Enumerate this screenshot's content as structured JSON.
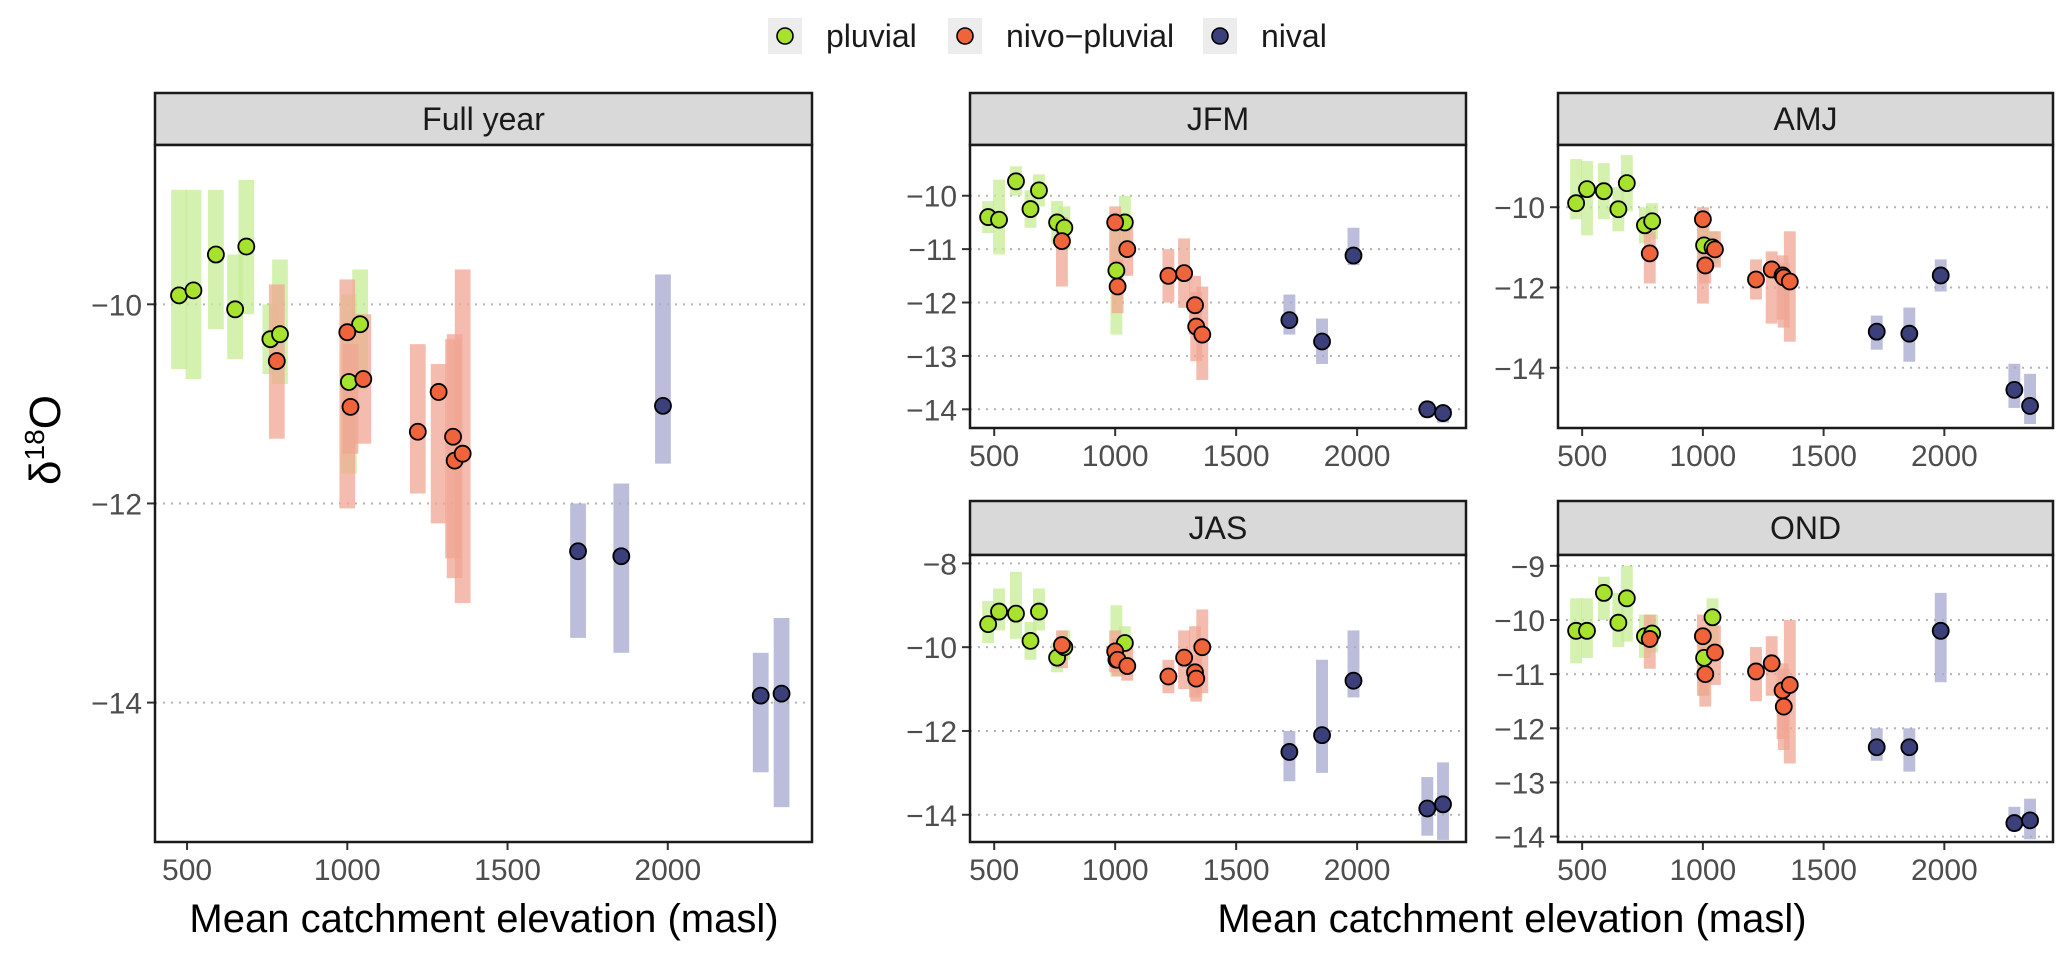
{
  "legend": {
    "items": [
      {
        "label": "pluvial",
        "color": "#a6e22e"
      },
      {
        "label": "nivo−pluvial",
        "color": "#f0643c"
      },
      {
        "label": "nival",
        "color": "#3b3f7a"
      }
    ],
    "bar_colors": {
      "pluvial": "#c6ec96",
      "nivo-pluvial": "#f0a693",
      "nival": "#a5a7cd"
    }
  },
  "axes": {
    "ylabel_prefix": "δ",
    "ylabel_sup": "18",
    "ylabel_suffix": "O",
    "xlabel_left": "Mean catchment elevation (masl)",
    "xlabel_right": "Mean catchment elevation (masl)"
  },
  "chart_data": [
    {
      "type": "scatter",
      "title": "Full year",
      "xlim": [
        400,
        2450
      ],
      "ylim": [
        -15.4,
        -8.4
      ],
      "xticks": [
        500,
        1000,
        1500,
        2000
      ],
      "yticks": [
        -10,
        -12,
        -14
      ],
      "grid": "dotted-horizontal",
      "points": [
        {
          "x": 475,
          "y": -9.91,
          "lo": -10.65,
          "hi": -8.85,
          "cls": "pluvial"
        },
        {
          "x": 520,
          "y": -9.86,
          "lo": -10.75,
          "hi": -8.85,
          "cls": "pluvial"
        },
        {
          "x": 590,
          "y": -9.5,
          "lo": -10.25,
          "hi": -8.85,
          "cls": "pluvial"
        },
        {
          "x": 650,
          "y": -10.05,
          "lo": -10.55,
          "hi": -9.5,
          "cls": "pluvial"
        },
        {
          "x": 685,
          "y": -9.42,
          "lo": -10.1,
          "hi": -8.75,
          "cls": "pluvial"
        },
        {
          "x": 760,
          "y": -10.35,
          "lo": -10.7,
          "hi": -10.0,
          "cls": "pluvial"
        },
        {
          "x": 790,
          "y": -10.3,
          "lo": -10.8,
          "hi": -9.55,
          "cls": "pluvial"
        },
        {
          "x": 1005,
          "y": -10.78,
          "lo": -11.7,
          "hi": -9.9,
          "cls": "pluvial"
        },
        {
          "x": 1040,
          "y": -10.2,
          "lo": -10.85,
          "hi": -9.65,
          "cls": "pluvial"
        },
        {
          "x": 780,
          "y": -10.57,
          "lo": -11.35,
          "hi": -9.8,
          "cls": "nivo-pluvial"
        },
        {
          "x": 1000,
          "y": -10.28,
          "lo": -12.05,
          "hi": -9.75,
          "cls": "nivo-pluvial"
        },
        {
          "x": 1010,
          "y": -11.03,
          "lo": -11.5,
          "hi": -10.4,
          "cls": "nivo-pluvial"
        },
        {
          "x": 1050,
          "y": -10.75,
          "lo": -11.4,
          "hi": -10.1,
          "cls": "nivo-pluvial"
        },
        {
          "x": 1220,
          "y": -11.28,
          "lo": -11.9,
          "hi": -10.4,
          "cls": "nivo-pluvial"
        },
        {
          "x": 1285,
          "y": -10.88,
          "lo": -12.2,
          "hi": -10.6,
          "cls": "nivo-pluvial"
        },
        {
          "x": 1330,
          "y": -11.33,
          "lo": -12.55,
          "hi": -10.35,
          "cls": "nivo-pluvial"
        },
        {
          "x": 1335,
          "y": -11.57,
          "lo": -12.75,
          "hi": -10.3,
          "cls": "nivo-pluvial"
        },
        {
          "x": 1360,
          "y": -11.5,
          "lo": -13.0,
          "hi": -9.65,
          "cls": "nivo-pluvial"
        },
        {
          "x": 1720,
          "y": -12.48,
          "lo": -13.35,
          "hi": -12.0,
          "cls": "nival"
        },
        {
          "x": 1855,
          "y": -12.53,
          "lo": -13.5,
          "hi": -11.8,
          "cls": "nival"
        },
        {
          "x": 1985,
          "y": -11.02,
          "lo": -11.6,
          "hi": -9.7,
          "cls": "nival"
        },
        {
          "x": 2290,
          "y": -13.93,
          "lo": -14.7,
          "hi": -13.5,
          "cls": "nival"
        },
        {
          "x": 2355,
          "y": -13.91,
          "lo": -15.05,
          "hi": -13.15,
          "cls": "nival"
        }
      ]
    },
    {
      "type": "scatter",
      "title": "JFM",
      "xlim": [
        400,
        2450
      ],
      "ylim": [
        -14.35,
        -9.05
      ],
      "xticks": [
        500,
        1000,
        1500,
        2000
      ],
      "yticks": [
        -10,
        -11,
        -12,
        -13,
        -14
      ],
      "grid": "dotted-horizontal",
      "points": [
        {
          "x": 475,
          "y": -10.4,
          "lo": -10.7,
          "hi": -10.1,
          "cls": "pluvial"
        },
        {
          "x": 520,
          "y": -10.45,
          "lo": -11.1,
          "hi": -9.7,
          "cls": "pluvial"
        },
        {
          "x": 590,
          "y": -9.73,
          "lo": -10.0,
          "hi": -9.45,
          "cls": "pluvial"
        },
        {
          "x": 650,
          "y": -10.25,
          "lo": -10.6,
          "hi": -9.9,
          "cls": "pluvial"
        },
        {
          "x": 685,
          "y": -9.9,
          "lo": -10.2,
          "hi": -9.6,
          "cls": "pluvial"
        },
        {
          "x": 760,
          "y": -10.5,
          "lo": -10.9,
          "hi": -10.1,
          "cls": "pluvial"
        },
        {
          "x": 790,
          "y": -10.6,
          "lo": -11.0,
          "hi": -10.2,
          "cls": "pluvial"
        },
        {
          "x": 1005,
          "y": -11.4,
          "lo": -12.6,
          "hi": -10.3,
          "cls": "pluvial"
        },
        {
          "x": 1040,
          "y": -10.5,
          "lo": -11.1,
          "hi": -10.0,
          "cls": "pluvial"
        },
        {
          "x": 780,
          "y": -10.85,
          "lo": -11.7,
          "hi": -10.4,
          "cls": "nivo-pluvial"
        },
        {
          "x": 1000,
          "y": -10.5,
          "lo": -11.3,
          "hi": -10.2,
          "cls": "nivo-pluvial"
        },
        {
          "x": 1010,
          "y": -11.7,
          "lo": -12.2,
          "hi": -11.2,
          "cls": "nivo-pluvial"
        },
        {
          "x": 1050,
          "y": -11.0,
          "lo": -11.5,
          "hi": -10.5,
          "cls": "nivo-pluvial"
        },
        {
          "x": 1220,
          "y": -11.5,
          "lo": -12.0,
          "hi": -11.0,
          "cls": "nivo-pluvial"
        },
        {
          "x": 1285,
          "y": -11.45,
          "lo": -12.1,
          "hi": -10.8,
          "cls": "nivo-pluvial"
        },
        {
          "x": 1330,
          "y": -12.05,
          "lo": -12.6,
          "hi": -11.5,
          "cls": "nivo-pluvial"
        },
        {
          "x": 1335,
          "y": -12.45,
          "lo": -13.1,
          "hi": -11.8,
          "cls": "nivo-pluvial"
        },
        {
          "x": 1360,
          "y": -12.6,
          "lo": -13.45,
          "hi": -11.7,
          "cls": "nivo-pluvial"
        },
        {
          "x": 1720,
          "y": -12.33,
          "lo": -12.6,
          "hi": -11.85,
          "cls": "nival"
        },
        {
          "x": 1855,
          "y": -12.73,
          "lo": -13.15,
          "hi": -12.3,
          "cls": "nival"
        },
        {
          "x": 1985,
          "y": -11.12,
          "lo": -11.3,
          "hi": -10.6,
          "cls": "nival"
        },
        {
          "x": 2290,
          "y": -14.0,
          "lo": -14.15,
          "hi": -13.85,
          "cls": "nival"
        },
        {
          "x": 2355,
          "y": -14.07,
          "lo": -14.25,
          "hi": -13.95,
          "cls": "nival"
        }
      ]
    },
    {
      "type": "scatter",
      "title": "AMJ",
      "xlim": [
        400,
        2450
      ],
      "ylim": [
        -15.5,
        -8.45
      ],
      "xticks": [
        500,
        1000,
        1500,
        2000
      ],
      "yticks": [
        -10,
        -12,
        -14
      ],
      "grid": "dotted-horizontal",
      "points": [
        {
          "x": 475,
          "y": -9.9,
          "lo": -10.3,
          "hi": -8.8,
          "cls": "pluvial"
        },
        {
          "x": 520,
          "y": -9.55,
          "lo": -10.7,
          "hi": -8.85,
          "cls": "pluvial"
        },
        {
          "x": 590,
          "y": -9.6,
          "lo": -10.3,
          "hi": -8.9,
          "cls": "pluvial"
        },
        {
          "x": 650,
          "y": -10.05,
          "lo": -10.6,
          "hi": -9.5,
          "cls": "pluvial"
        },
        {
          "x": 685,
          "y": -9.4,
          "lo": -10.1,
          "hi": -8.7,
          "cls": "pluvial"
        },
        {
          "x": 760,
          "y": -10.45,
          "lo": -10.9,
          "hi": -10.0,
          "cls": "pluvial"
        },
        {
          "x": 790,
          "y": -10.35,
          "lo": -10.8,
          "hi": -9.9,
          "cls": "pluvial"
        },
        {
          "x": 1005,
          "y": -10.95,
          "lo": -11.5,
          "hi": -10.4,
          "cls": "pluvial"
        },
        {
          "x": 1040,
          "y": -11.0,
          "lo": -11.4,
          "hi": -10.6,
          "cls": "pluvial"
        },
        {
          "x": 780,
          "y": -11.15,
          "lo": -11.9,
          "hi": -10.6,
          "cls": "nivo-pluvial"
        },
        {
          "x": 1000,
          "y": -10.3,
          "lo": -12.4,
          "hi": -10.0,
          "cls": "nivo-pluvial"
        },
        {
          "x": 1010,
          "y": -11.45,
          "lo": -11.9,
          "hi": -11.0,
          "cls": "nivo-pluvial"
        },
        {
          "x": 1050,
          "y": -11.05,
          "lo": -11.5,
          "hi": -10.6,
          "cls": "nivo-pluvial"
        },
        {
          "x": 1220,
          "y": -11.8,
          "lo": -12.3,
          "hi": -11.3,
          "cls": "nivo-pluvial"
        },
        {
          "x": 1285,
          "y": -11.55,
          "lo": -12.9,
          "hi": -11.1,
          "cls": "nivo-pluvial"
        },
        {
          "x": 1330,
          "y": -11.7,
          "lo": -12.8,
          "hi": -11.2,
          "cls": "nivo-pluvial"
        },
        {
          "x": 1335,
          "y": -11.75,
          "lo": -13.0,
          "hi": -11.4,
          "cls": "nivo-pluvial"
        },
        {
          "x": 1360,
          "y": -11.85,
          "lo": -13.35,
          "hi": -10.6,
          "cls": "nivo-pluvial"
        },
        {
          "x": 1720,
          "y": -13.1,
          "lo": -13.55,
          "hi": -12.7,
          "cls": "nival"
        },
        {
          "x": 1855,
          "y": -13.15,
          "lo": -13.85,
          "hi": -12.5,
          "cls": "nival"
        },
        {
          "x": 1985,
          "y": -11.7,
          "lo": -12.1,
          "hi": -11.3,
          "cls": "nival"
        },
        {
          "x": 2290,
          "y": -14.55,
          "lo": -15.0,
          "hi": -13.9,
          "cls": "nival"
        },
        {
          "x": 2355,
          "y": -14.95,
          "lo": -15.4,
          "hi": -14.15,
          "cls": "nival"
        }
      ]
    },
    {
      "type": "scatter",
      "title": "JAS",
      "xlim": [
        400,
        2450
      ],
      "ylim": [
        -14.65,
        -7.8
      ],
      "xticks": [
        500,
        1000,
        1500,
        2000
      ],
      "yticks": [
        -8,
        -10,
        -12,
        -14
      ],
      "grid": "dotted-horizontal",
      "points": [
        {
          "x": 475,
          "y": -9.45,
          "lo": -9.9,
          "hi": -8.9,
          "cls": "pluvial"
        },
        {
          "x": 520,
          "y": -9.15,
          "lo": -9.6,
          "hi": -8.6,
          "cls": "pluvial"
        },
        {
          "x": 590,
          "y": -9.2,
          "lo": -9.8,
          "hi": -8.2,
          "cls": "pluvial"
        },
        {
          "x": 650,
          "y": -9.85,
          "lo": -10.3,
          "hi": -9.4,
          "cls": "pluvial"
        },
        {
          "x": 685,
          "y": -9.15,
          "lo": -9.6,
          "hi": -8.6,
          "cls": "pluvial"
        },
        {
          "x": 760,
          "y": -10.25,
          "lo": -10.6,
          "hi": -9.9,
          "cls": "pluvial"
        },
        {
          "x": 790,
          "y": -10.0,
          "lo": -10.3,
          "hi": -9.6,
          "cls": "pluvial"
        },
        {
          "x": 1005,
          "y": -10.3,
          "lo": -10.7,
          "hi": -9.0,
          "cls": "pluvial"
        },
        {
          "x": 1040,
          "y": -9.9,
          "lo": -10.3,
          "hi": -9.5,
          "cls": "pluvial"
        },
        {
          "x": 780,
          "y": -9.95,
          "lo": -10.5,
          "hi": -9.6,
          "cls": "nivo-pluvial"
        },
        {
          "x": 1000,
          "y": -10.1,
          "lo": -10.6,
          "hi": -9.6,
          "cls": "nivo-pluvial"
        },
        {
          "x": 1010,
          "y": -10.3,
          "lo": -10.7,
          "hi": -9.8,
          "cls": "nivo-pluvial"
        },
        {
          "x": 1050,
          "y": -10.45,
          "lo": -10.8,
          "hi": -9.8,
          "cls": "nivo-pluvial"
        },
        {
          "x": 1220,
          "y": -10.7,
          "lo": -11.1,
          "hi": -10.3,
          "cls": "nivo-pluvial"
        },
        {
          "x": 1285,
          "y": -10.25,
          "lo": -11.0,
          "hi": -9.6,
          "cls": "nivo-pluvial"
        },
        {
          "x": 1330,
          "y": -10.6,
          "lo": -11.2,
          "hi": -9.5,
          "cls": "nivo-pluvial"
        },
        {
          "x": 1335,
          "y": -10.75,
          "lo": -11.3,
          "hi": -10.2,
          "cls": "nivo-pluvial"
        },
        {
          "x": 1360,
          "y": -10.0,
          "lo": -11.1,
          "hi": -9.1,
          "cls": "nivo-pluvial"
        },
        {
          "x": 1720,
          "y": -12.5,
          "lo": -13.2,
          "hi": -12.0,
          "cls": "nival"
        },
        {
          "x": 1855,
          "y": -12.1,
          "lo": -13.0,
          "hi": -10.3,
          "cls": "nival"
        },
        {
          "x": 1985,
          "y": -10.8,
          "lo": -11.2,
          "hi": -9.6,
          "cls": "nival"
        },
        {
          "x": 2290,
          "y": -13.85,
          "lo": -14.5,
          "hi": -13.1,
          "cls": "nival"
        },
        {
          "x": 2355,
          "y": -13.75,
          "lo": -14.6,
          "hi": -12.75,
          "cls": "nival"
        }
      ]
    },
    {
      "type": "scatter",
      "title": "OND",
      "xlim": [
        400,
        2450
      ],
      "ylim": [
        -14.1,
        -8.8
      ],
      "xticks": [
        500,
        1000,
        1500,
        2000
      ],
      "yticks": [
        -9,
        -10,
        -11,
        -12,
        -13,
        -14
      ],
      "grid": "dotted-horizontal",
      "points": [
        {
          "x": 475,
          "y": -10.2,
          "lo": -10.8,
          "hi": -9.6,
          "cls": "pluvial"
        },
        {
          "x": 520,
          "y": -10.2,
          "lo": -10.7,
          "hi": -9.6,
          "cls": "pluvial"
        },
        {
          "x": 590,
          "y": -9.5,
          "lo": -10.0,
          "hi": -9.2,
          "cls": "pluvial"
        },
        {
          "x": 650,
          "y": -10.05,
          "lo": -10.5,
          "hi": -9.5,
          "cls": "pluvial"
        },
        {
          "x": 685,
          "y": -9.6,
          "lo": -10.4,
          "hi": -9.0,
          "cls": "pluvial"
        },
        {
          "x": 760,
          "y": -10.3,
          "lo": -10.7,
          "hi": -9.9,
          "cls": "pluvial"
        },
        {
          "x": 790,
          "y": -10.25,
          "lo": -10.6,
          "hi": -9.9,
          "cls": "pluvial"
        },
        {
          "x": 1005,
          "y": -10.7,
          "lo": -11.4,
          "hi": -10.2,
          "cls": "pluvial"
        },
        {
          "x": 1040,
          "y": -9.95,
          "lo": -10.7,
          "hi": -9.6,
          "cls": "pluvial"
        },
        {
          "x": 780,
          "y": -10.35,
          "lo": -10.9,
          "hi": -9.9,
          "cls": "nivo-pluvial"
        },
        {
          "x": 1000,
          "y": -10.3,
          "lo": -11.4,
          "hi": -9.9,
          "cls": "nivo-pluvial"
        },
        {
          "x": 1010,
          "y": -11.0,
          "lo": -11.6,
          "hi": -10.5,
          "cls": "nivo-pluvial"
        },
        {
          "x": 1050,
          "y": -10.6,
          "lo": -11.2,
          "hi": -10.1,
          "cls": "nivo-pluvial"
        },
        {
          "x": 1220,
          "y": -10.95,
          "lo": -11.5,
          "hi": -10.5,
          "cls": "nivo-pluvial"
        },
        {
          "x": 1285,
          "y": -10.8,
          "lo": -11.4,
          "hi": -10.3,
          "cls": "nivo-pluvial"
        },
        {
          "x": 1330,
          "y": -11.3,
          "lo": -12.2,
          "hi": -10.8,
          "cls": "nivo-pluvial"
        },
        {
          "x": 1335,
          "y": -11.6,
          "lo": -12.4,
          "hi": -10.9,
          "cls": "nivo-pluvial"
        },
        {
          "x": 1360,
          "y": -11.2,
          "lo": -12.65,
          "hi": -10.0,
          "cls": "nivo-pluvial"
        },
        {
          "x": 1720,
          "y": -12.35,
          "lo": -12.6,
          "hi": -12.0,
          "cls": "nival"
        },
        {
          "x": 1855,
          "y": -12.35,
          "lo": -12.8,
          "hi": -12.0,
          "cls": "nival"
        },
        {
          "x": 1985,
          "y": -10.2,
          "lo": -11.15,
          "hi": -9.5,
          "cls": "nival"
        },
        {
          "x": 2290,
          "y": -13.75,
          "lo": -13.9,
          "hi": -13.45,
          "cls": "nival"
        },
        {
          "x": 2355,
          "y": -13.7,
          "lo": -14.05,
          "hi": -13.3,
          "cls": "nival"
        }
      ]
    }
  ]
}
